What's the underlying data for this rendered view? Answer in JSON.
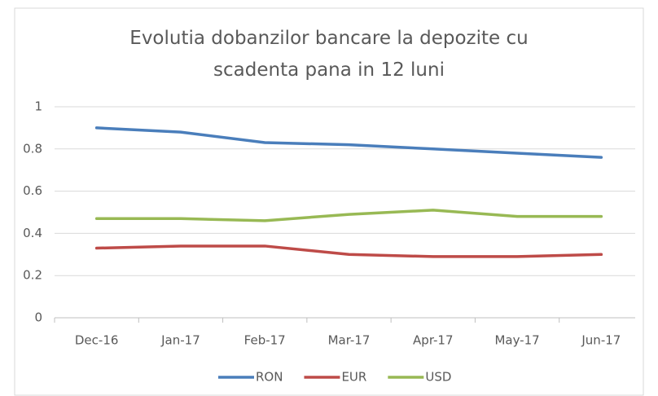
{
  "chart_data": {
    "type": "line",
    "title": "Evolutia dobanzilor bancare la depozite cu scadenta pana in 12 luni",
    "categories": [
      "Dec-16",
      "Jan-17",
      "Feb-17",
      "Mar-17",
      "Apr-17",
      "May-17",
      "Jun-17"
    ],
    "series": [
      {
        "name": "RON",
        "color": "#4a7ebb",
        "values": [
          0.9,
          0.88,
          0.83,
          0.82,
          0.8,
          0.78,
          0.76
        ]
      },
      {
        "name": "EUR",
        "color": "#be4b48",
        "values": [
          0.33,
          0.34,
          0.34,
          0.3,
          0.29,
          0.29,
          0.3
        ]
      },
      {
        "name": "USD",
        "color": "#98b954",
        "values": [
          0.47,
          0.47,
          0.46,
          0.49,
          0.51,
          0.48,
          0.48
        ]
      }
    ],
    "ylim": [
      0,
      1
    ],
    "yticks": [
      0,
      0.2,
      0.4,
      0.6,
      0.8,
      1
    ],
    "grid": true,
    "legend": "bottom"
  }
}
